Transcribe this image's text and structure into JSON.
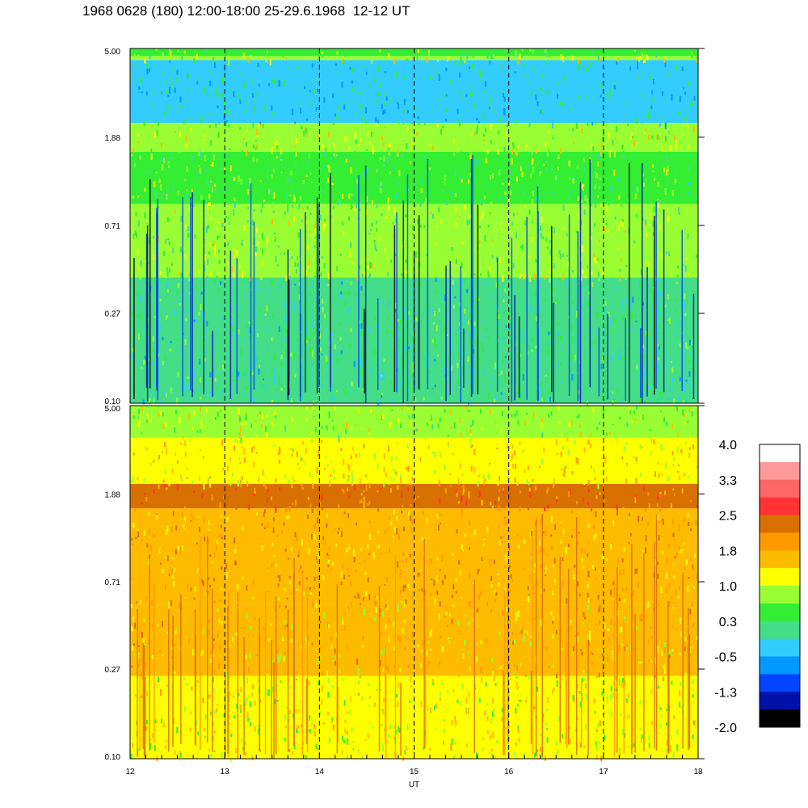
{
  "title": "1968 0628 (180) 12:00-18:00 25-29.6.1968  12-12 UT",
  "chart_data": [
    {
      "type": "heatmap",
      "name": "",
      "y_scale": "log",
      "yticks": [
        "5.00",
        "1.88",
        "0.71",
        "0.27",
        "0.10"
      ],
      "ylim": [
        0.1,
        5.0
      ],
      "xlim": [
        12,
        18
      ],
      "hour_markers": [
        13,
        14,
        15,
        16,
        17
      ],
      "bands": [
        {
          "from": 5.0,
          "to": 4.6,
          "level": 0.6
        },
        {
          "from": 4.6,
          "to": 4.4,
          "level": 1.0
        },
        {
          "from": 4.4,
          "to": 2.2,
          "level": -0.2
        },
        {
          "from": 2.2,
          "to": 1.6,
          "level": 1.0
        },
        {
          "from": 1.6,
          "to": 0.9,
          "level": 0.5
        },
        {
          "from": 0.9,
          "to": 0.4,
          "level": 0.7
        },
        {
          "from": 0.4,
          "to": 0.1,
          "level": 0.1
        }
      ]
    },
    {
      "type": "heatmap",
      "name": "",
      "y_scale": "log",
      "yticks": [
        "5.00",
        "1.88",
        "0.71",
        "0.27",
        "0.10"
      ],
      "ylim": [
        0.1,
        5.0
      ],
      "xlim": [
        12,
        18
      ],
      "hour_markers": [
        13,
        14,
        15,
        16,
        17
      ],
      "bands": [
        {
          "from": 5.0,
          "to": 3.5,
          "level": 0.9
        },
        {
          "from": 3.5,
          "to": 2.1,
          "level": 1.4
        },
        {
          "from": 2.1,
          "to": 1.6,
          "level": 2.2
        },
        {
          "from": 1.6,
          "to": 0.55,
          "level": 1.8
        },
        {
          "from": 0.55,
          "to": 0.25,
          "level": 1.6
        },
        {
          "from": 0.25,
          "to": 0.1,
          "level": 1.1
        }
      ]
    }
  ],
  "x_axis": {
    "label": "UT",
    "ticks": [
      "12",
      "13",
      "14",
      "15",
      "16",
      "17",
      "18"
    ]
  },
  "colorbar": {
    "labels": [
      "4.0",
      "3.3",
      "2.5",
      "1.8",
      "1.0",
      "0.3",
      "-0.5",
      "-1.3",
      "-2.0"
    ],
    "min": -2.0,
    "max": 4.0,
    "colors": [
      "#ffffff",
      "#ff9999",
      "#ff6666",
      "#ff3333",
      "#d87000",
      "#ff9900",
      "#ffbb00",
      "#ffff00",
      "#99ff33",
      "#33ee33",
      "#44dd88",
      "#33ccff",
      "#0099ff",
      "#0044ff",
      "#0011aa",
      "#000000"
    ]
  }
}
